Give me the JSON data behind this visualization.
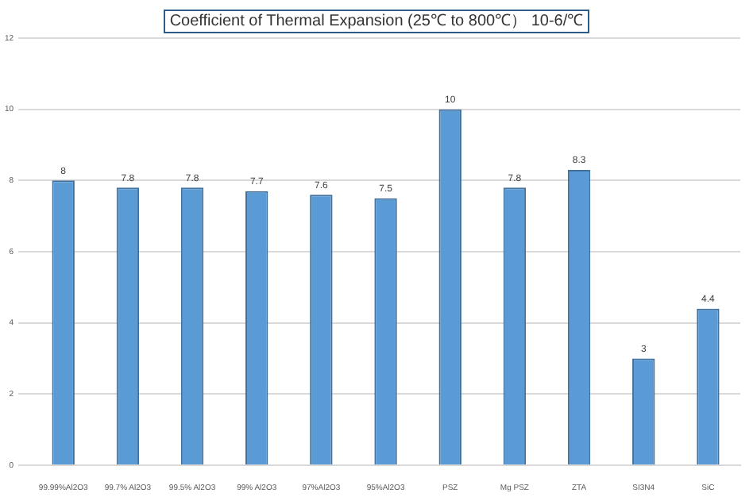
{
  "chart_data": {
    "type": "bar",
    "title": "Coefficient of Thermal Expansion (25℃ to 800℃） 10-6/℃",
    "categories": [
      "99.99%Al2O3",
      "99.7% Al2O3",
      "99.5% Al2O3",
      "99% Al2O3",
      "97%Al2O3",
      "95%Al2O3",
      "PSZ",
      "Mg PSZ",
      "ZTA",
      "SI3N4",
      "SiC"
    ],
    "values": [
      8,
      7.8,
      7.8,
      7.7,
      7.6,
      7.5,
      10,
      7.8,
      8.3,
      3,
      4.4
    ],
    "color": "#5b9bd5",
    "ylim": [
      0,
      12
    ],
    "yticks": [
      0,
      2,
      4,
      6,
      8,
      10,
      12
    ],
    "grid": "y",
    "data_labels": true
  }
}
